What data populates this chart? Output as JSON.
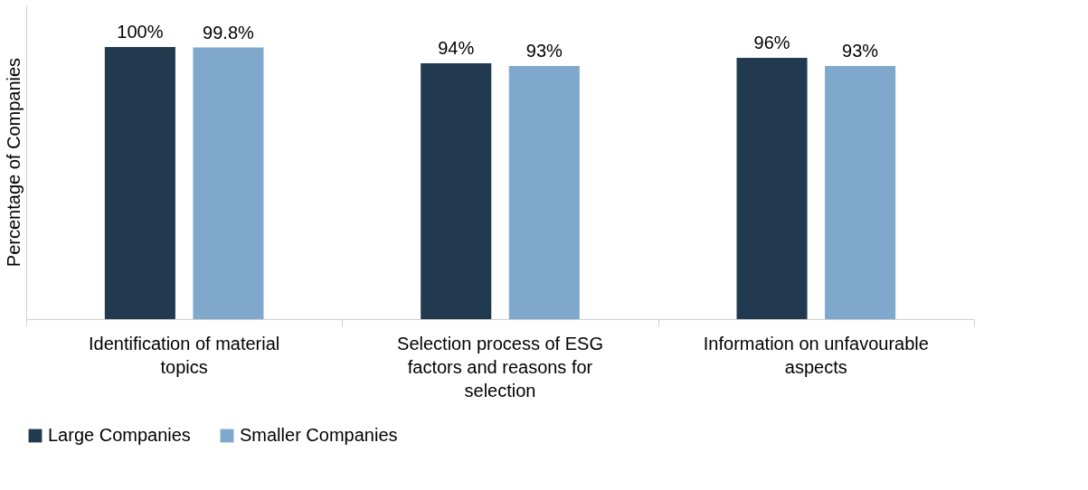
{
  "chart_data": {
    "type": "bar",
    "ylabel": "Percentage of Companies",
    "categories": [
      "Identification of material topics",
      "Selection process of ESG factors and reasons for selection",
      "Information on unfavourable aspects"
    ],
    "series": [
      {
        "name": "Large Companies",
        "color": "#213a4f",
        "values": [
          100,
          94,
          96
        ],
        "value_labels": [
          "100%",
          "94%",
          "96%"
        ]
      },
      {
        "name": "Smaller Companies",
        "color": "#7fa9cc",
        "values": [
          99.8,
          93,
          93
        ],
        "value_labels": [
          "99.8%",
          "93%",
          "93%"
        ]
      }
    ],
    "legend": "bottom",
    "grid": false
  }
}
